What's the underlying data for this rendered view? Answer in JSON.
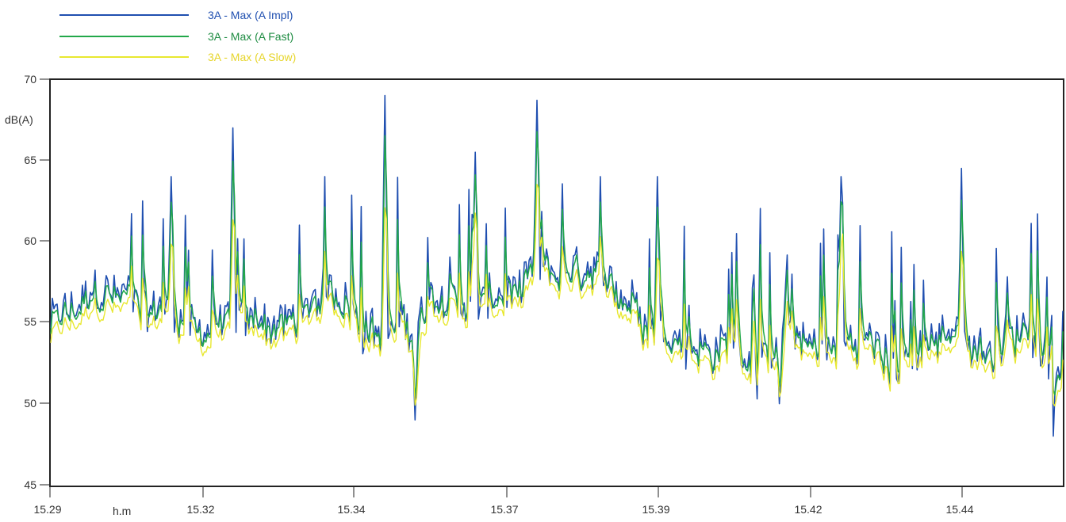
{
  "chart_data": {
    "type": "line",
    "title": "",
    "xlabel": "h.m",
    "ylabel": "dB(A)",
    "ylim": [
      45,
      70
    ],
    "yticks": [
      "45",
      "50",
      "55",
      "60",
      "65",
      "70"
    ],
    "xticks": [
      "15.29",
      "15.32",
      "15.34",
      "15.37",
      "15.39",
      "15.42",
      "15.44"
    ],
    "legend": "top-left",
    "grid": false,
    "series": [
      {
        "name": "3A - Max (A Impl)",
        "color": "#1f4fb0",
        "key_points": [
          {
            "x": "15.29",
            "y": 59
          },
          {
            "x": "15.31",
            "y": 64
          },
          {
            "x": "15.32",
            "y": 67
          },
          {
            "x": "15.345",
            "y": 69
          },
          {
            "x": "15.35",
            "y": 49
          },
          {
            "x": "15.36",
            "y": 65.5
          },
          {
            "x": "15.37",
            "y": 68.7
          },
          {
            "x": "15.39",
            "y": 64
          },
          {
            "x": "15.41",
            "y": 50
          },
          {
            "x": "15.42",
            "y": 64
          },
          {
            "x": "15.44",
            "y": 64.5
          },
          {
            "x": "15.455",
            "y": 48
          }
        ]
      },
      {
        "name": "3A - Max (A Fast)",
        "color": "#22a84a",
        "key_points": [
          {
            "x": "15.29",
            "y": 57
          },
          {
            "x": "15.32",
            "y": 63
          },
          {
            "x": "15.345",
            "y": 67
          },
          {
            "x": "15.37",
            "y": 66
          },
          {
            "x": "15.455",
            "y": 47.5
          }
        ]
      },
      {
        "name": "3A - Max (A Slow)",
        "color": "#e8e830",
        "key_points": [
          {
            "x": "15.29",
            "y": 55
          },
          {
            "x": "15.32",
            "y": 60
          },
          {
            "x": "15.345",
            "y": 62
          },
          {
            "x": "15.37",
            "y": 61
          },
          {
            "x": "15.455",
            "y": 48
          }
        ]
      }
    ]
  }
}
